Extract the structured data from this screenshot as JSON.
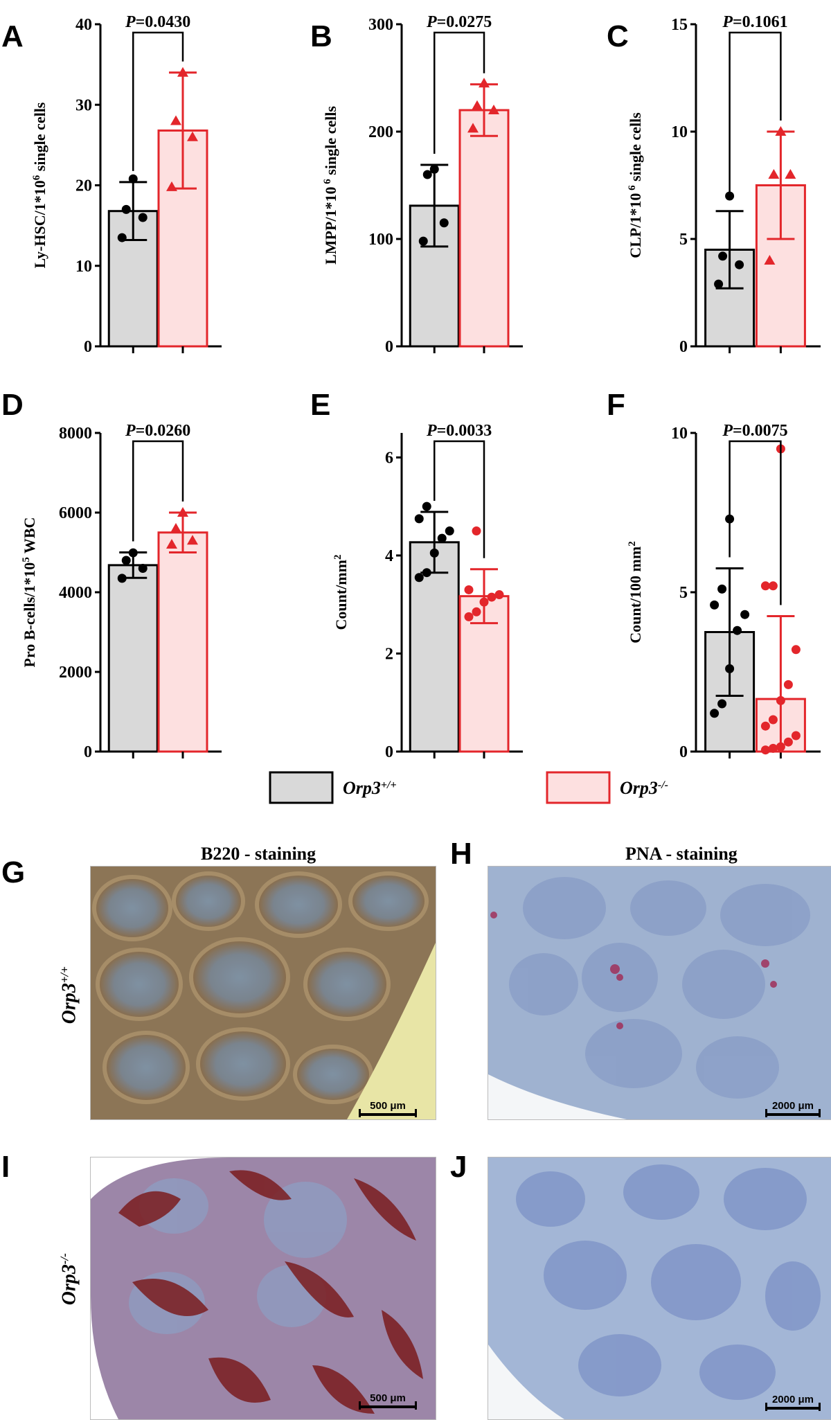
{
  "panels": {
    "A": "A",
    "B": "B",
    "C": "C",
    "D": "D",
    "E": "E",
    "F": "F",
    "G": "G",
    "H": "H",
    "I": "I",
    "J": "J"
  },
  "legend": {
    "wt": {
      "label": "Orp3",
      "sup": "+/+"
    },
    "ko": {
      "label": "Orp3",
      "sup": "-/-"
    }
  },
  "colors": {
    "wt_fill": "#d9d9d9",
    "wt_stroke": "#000000",
    "ko_fill": "#fde0e0",
    "ko_stroke": "#e3262b"
  },
  "chart_data": [
    {
      "panel": "A",
      "type": "bar",
      "p_value": "=0.0430",
      "ylabel": "Ly-HSC/1*10",
      "ylabel_sup": "6",
      "ylabel_tail": " single cells",
      "ylim": [
        0,
        40
      ],
      "yticks": [
        "0",
        "10",
        "20",
        "30",
        "40"
      ],
      "series": [
        {
          "group": "wt",
          "mean": 16.8,
          "sd": 3.6,
          "points": [
            13.5,
            16,
            17,
            20.8
          ]
        },
        {
          "group": "ko",
          "mean": 26.8,
          "sd": 7.2,
          "points": [
            19.8,
            26,
            28,
            34
          ]
        }
      ]
    },
    {
      "panel": "B",
      "type": "bar",
      "p_value": "=0.0275",
      "ylabel": "LMPP/1*10",
      "ylabel_sup": " 6",
      "ylabel_tail": " single cells",
      "ylim": [
        0,
        300
      ],
      "yticks": [
        "0",
        "100",
        "200",
        "300"
      ],
      "series": [
        {
          "group": "wt",
          "mean": 131,
          "sd": 38,
          "points": [
            98,
            115,
            160,
            165
          ]
        },
        {
          "group": "ko",
          "mean": 220,
          "sd": 24,
          "points": [
            203,
            220,
            224,
            245
          ]
        }
      ]
    },
    {
      "panel": "C",
      "type": "bar",
      "p_value": "=0.1061",
      "ylabel": "CLP/1*10",
      "ylabel_sup": " 6",
      "ylabel_tail": " single cells",
      "ylim": [
        0,
        15
      ],
      "yticks": [
        "0",
        "5",
        "10",
        "15"
      ],
      "series": [
        {
          "group": "wt",
          "mean": 4.5,
          "sd": 1.8,
          "points": [
            2.9,
            3.8,
            4.2,
            7.0
          ]
        },
        {
          "group": "ko",
          "mean": 7.5,
          "sd": 2.5,
          "points": [
            4.0,
            8.0,
            8.0,
            10.0
          ]
        }
      ]
    },
    {
      "panel": "D",
      "type": "bar",
      "p_value": "=0.0260",
      "ylabel": "Pro B-cells/1*10",
      "ylabel_sup": "5",
      "ylabel_tail": " WBC",
      "ylim": [
        0,
        8000
      ],
      "yticks": [
        "0",
        "2000",
        "4000",
        "6000",
        "8000"
      ],
      "series": [
        {
          "group": "wt",
          "mean": 4680,
          "sd": 320,
          "points": [
            4350,
            4600,
            4800,
            4990
          ]
        },
        {
          "group": "ko",
          "mean": 5500,
          "sd": 500,
          "points": [
            5200,
            5300,
            5600,
            6000
          ]
        }
      ]
    },
    {
      "panel": "E",
      "type": "bar",
      "p_value": "=0.0033",
      "ylabel": "Count/mm",
      "ylabel_sup": "2",
      "ylabel_tail": "",
      "ylim": [
        0,
        6.5
      ],
      "yticks": [
        "0",
        "2",
        "4",
        "6"
      ],
      "series": [
        {
          "group": "wt",
          "mean": 4.27,
          "sd": 0.62,
          "points": [
            3.55,
            3.65,
            4.05,
            4.35,
            4.5,
            4.75,
            5.0
          ]
        },
        {
          "group": "ko",
          "mean": 3.17,
          "sd": 0.55,
          "points": [
            2.75,
            2.85,
            3.05,
            3.15,
            3.2,
            3.3,
            4.5
          ]
        }
      ]
    },
    {
      "panel": "F",
      "type": "bar",
      "p_value": "=0.0075",
      "ylabel": "Count/100 mm",
      "ylabel_sup": "2",
      "ylabel_tail": "",
      "ylim": [
        0,
        10
      ],
      "yticks": [
        "0",
        "5",
        "10"
      ],
      "series": [
        {
          "group": "wt",
          "mean": 3.75,
          "sd": 2.0,
          "points": [
            1.2,
            1.5,
            2.6,
            3.8,
            4.3,
            4.6,
            5.1,
            7.3
          ]
        },
        {
          "group": "ko",
          "mean": 1.65,
          "sd": 2.6,
          "points": [
            0.05,
            0.1,
            0.15,
            0.3,
            0.5,
            0.8,
            1.0,
            1.6,
            2.1,
            3.2,
            5.2,
            5.2,
            9.5
          ]
        }
      ]
    }
  ],
  "images": {
    "G": {
      "title": "B220 - staining",
      "scalebar": "500 μm"
    },
    "H": {
      "title": "PNA - staining",
      "scalebar": "2000 μm"
    },
    "I": {
      "scalebar": "500 μm"
    },
    "J": {
      "scalebar": "2000 μm"
    }
  },
  "row_labels": {
    "top": {
      "label": "Orp3",
      "sup": "+/+"
    },
    "bottom": {
      "label": "Orp3",
      "sup": "-/-"
    }
  }
}
